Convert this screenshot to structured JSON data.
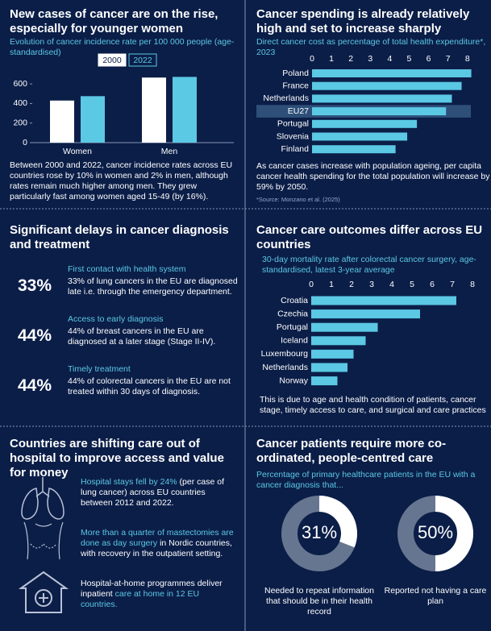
{
  "chart_data": [
    {
      "type": "bar",
      "title": "New cases of cancer are on the rise, especially for younger women",
      "subtitle": "Evolution of cancer incidence rate per 100 000 people (age-standardised)",
      "categories": [
        "Women",
        "Men"
      ],
      "series": [
        {
          "name": "2000",
          "color": "#ffffff",
          "values": [
            430,
            665
          ]
        },
        {
          "name": "2022",
          "color": "#5bc8e4",
          "values": [
            475,
            672
          ]
        }
      ],
      "ylim": [
        0,
        700
      ],
      "yticks": [
        0,
        200,
        400,
        600
      ],
      "note": "Between 2000 and 2022, cancer incidence rates across EU countries rose by 10% in women and 2% in men, although rates remain much higher among men. They grew particularly fast among women aged 15-49 (by 16%)."
    },
    {
      "type": "hbar",
      "title": "Cancer spending is already relatively high and set to increase sharply",
      "subtitle": "Direct cancer cost as percentage of total health expenditure*, 2023",
      "categories": [
        "Poland",
        "France",
        "Netherlands",
        "EU27",
        "Portugal",
        "Slovenia",
        "Finland"
      ],
      "values": [
        8.2,
        7.7,
        7.2,
        6.9,
        5.4,
        4.9,
        4.3
      ],
      "color": "#5bc8e4",
      "highlight": "EU27",
      "xlim": [
        0,
        8.3
      ],
      "xticks": [
        0,
        1,
        2,
        3,
        4,
        5,
        6,
        7,
        8
      ],
      "note": "As cancer cases increase with population ageing, per capita cancer health spending for the total population will increase by 59% by 2050.",
      "source": "*Source: Monzano et al. (2025)"
    },
    {
      "type": "hbar",
      "title": "Cancer care outcomes differ across EU countries",
      "subtitle": "30-day mortality rate after colorectal cancer surgery, age-standardised, latest 3-year average",
      "categories": [
        "Croatia",
        "Czechia",
        "Portugal",
        "Iceland",
        "Luxembourg",
        "Netherlands",
        "Norway"
      ],
      "values": [
        7.2,
        5.4,
        3.3,
        2.7,
        2.1,
        1.8,
        1.3
      ],
      "color": "#5bc8e4",
      "xlim": [
        0,
        8.2
      ],
      "xticks": [
        0,
        1,
        2,
        3,
        4,
        5,
        6,
        7,
        8
      ],
      "note": "This is due to age and health condition of patients, cancer stage, timely access to care, and surgical and care practices"
    },
    {
      "type": "donut",
      "title": "Cancer patients require more co-ordinated, people-centred care",
      "subtitle": "Percentage of primary healthcare patients in the EU with a cancer diagnosis that...",
      "categories": [
        "Needed to repeat information that should be in their health record",
        "Reported not having a care plan"
      ],
      "values": [
        31,
        50
      ],
      "value_labels": [
        "31%",
        "50%"
      ],
      "color": "#ffffff"
    }
  ],
  "delays": {
    "title": "Significant delays in cancer diagnosis and treatment",
    "items": [
      {
        "heading": "First contact with health system",
        "stat": "33%",
        "text": "33% of lung cancers in the EU are diagnosed late i.e. through the emergency department."
      },
      {
        "heading": "Access to early diagnosis",
        "stat": "44%",
        "text": "44% of breast cancers in the EU are diagnosed at a later stage (Stage II-IV)."
      },
      {
        "heading": "Timely treatment",
        "stat": "44%",
        "text": "44% of colorectal cancers in the EU are not treated within 30 days of diagnosis."
      }
    ]
  },
  "shifting": {
    "title": "Countries are shifting care out of hospital to improve access and value for money",
    "items": [
      {
        "parts": [
          {
            "text": "Hospital stays fell by 24%",
            "highlight": true
          },
          {
            "text": " (per case of lung cancer) across EU countries between 2012 and 2022.",
            "highlight": false
          }
        ]
      },
      {
        "parts": [
          {
            "text": "More than a quarter of mastectomies are done as day surgery",
            "highlight": true
          },
          {
            "text": " in Nordic countries, with recovery in the outpatient setting.",
            "highlight": false
          }
        ]
      },
      {
        "parts": [
          {
            "text": "Hospital-at-home programmes deliver inpatient ",
            "highlight": false
          },
          {
            "text": "care at home in 12 EU countries.",
            "highlight": true
          }
        ]
      }
    ]
  }
}
